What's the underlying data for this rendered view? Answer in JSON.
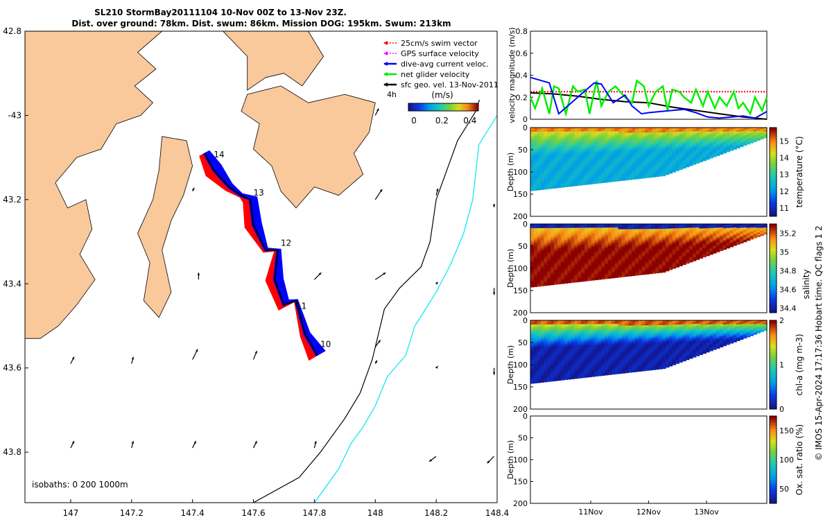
{
  "header": {
    "title_line1": "SL210 StormBay20111104 10-Nov 00Z to 13-Nov 23Z.",
    "title_line2": "Dist. over ground: 78km. Dist. swum: 86km. Mission DOG: 195km. Swum: 213km"
  },
  "colors": {
    "land": "#f9c89b",
    "red": "#ff0000",
    "blue": "#0000ff",
    "green": "#00ee00",
    "magenta": "#ff00ff",
    "cyan": "#00e5ee"
  },
  "chart_data": [
    {
      "type": "map",
      "xlim": [
        146.85,
        148.4
      ],
      "ylim": [
        -43.92,
        -42.8
      ],
      "x_ticks": [
        147,
        147.2,
        147.4,
        147.6,
        147.8,
        148,
        148.2,
        148.4
      ],
      "x_tick_labels": [
        "147",
        "147.2",
        "147.4",
        "147.6",
        "147.8",
        "148",
        "148.2",
        "148.4"
      ],
      "y_ticks": [
        -42.8,
        -43,
        -43.2,
        -43.4,
        -43.6,
        -43.8
      ],
      "y_tick_labels": [
        "42.8",
        "-43",
        "43.2",
        "43.4",
        "43.6",
        "43.8"
      ],
      "legend": [
        {
          "label": "25cm/s swim vector",
          "color": "#ff0000",
          "style": "dotted-arrow"
        },
        {
          "label": "GPS surface velocity",
          "color": "#ff00ff",
          "style": "dotted-arrow"
        },
        {
          "label": "dive-avg current veloc.",
          "color": "#0000ff",
          "style": "arrow"
        },
        {
          "label": "net glider velocity",
          "color": "#00ee00",
          "style": "arrow"
        },
        {
          "label": "sfc geo. vel. 13-Nov-2011",
          "color": "#000000",
          "style": "arrow"
        }
      ],
      "legend_extra": "4h",
      "colorbar": {
        "label": "(m/s)",
        "ticks": [
          "0",
          "0.2",
          "0.4"
        ],
        "range": [
          0,
          0.5
        ]
      },
      "isobaths_label": "isobaths: 0   200  1000m",
      "track": [
        [
          147.44,
          -43.09
        ],
        [
          147.47,
          -43.13
        ],
        [
          147.52,
          -43.17
        ],
        [
          147.56,
          -43.19
        ],
        [
          147.59,
          -43.2
        ],
        [
          147.6,
          -43.26
        ],
        [
          147.64,
          -43.32
        ],
        [
          147.68,
          -43.32
        ],
        [
          147.67,
          -43.39
        ],
        [
          147.7,
          -43.45
        ],
        [
          147.74,
          -43.44
        ],
        [
          147.77,
          -43.52
        ],
        [
          147.81,
          -43.57
        ]
      ],
      "day_labels": [
        {
          "text": "14",
          "lon": 147.47,
          "lat": -43.1
        },
        {
          "text": "13",
          "lon": 147.6,
          "lat": -43.19
        },
        {
          "text": "12",
          "lon": 147.69,
          "lat": -43.31
        },
        {
          "text": "11",
          "lon": 147.74,
          "lat": -43.46
        },
        {
          "text": "10",
          "lon": 147.82,
          "lat": -43.55
        }
      ],
      "isobath_200m": [
        [
          148.39,
          -42.82
        ],
        [
          148.37,
          -42.9
        ],
        [
          148.33,
          -42.99
        ],
        [
          148.27,
          -43.06
        ],
        [
          148.24,
          -43.12
        ],
        [
          148.2,
          -43.2
        ],
        [
          148.18,
          -43.3
        ],
        [
          148.15,
          -43.36
        ],
        [
          148.08,
          -43.41
        ],
        [
          148.03,
          -43.46
        ],
        [
          148.01,
          -43.52
        ],
        [
          147.99,
          -43.58
        ],
        [
          147.95,
          -43.66
        ],
        [
          147.9,
          -43.72
        ],
        [
          147.82,
          -43.8
        ],
        [
          147.75,
          -43.86
        ],
        [
          147.6,
          -43.92
        ]
      ],
      "isobath_1000m": [
        [
          148.4,
          -43.0
        ],
        [
          148.34,
          -43.07
        ],
        [
          148.32,
          -43.2
        ],
        [
          148.29,
          -43.28
        ],
        [
          148.25,
          -43.35
        ],
        [
          148.2,
          -43.42
        ],
        [
          148.13,
          -43.5
        ],
        [
          148.1,
          -43.57
        ],
        [
          148.04,
          -43.62
        ],
        [
          148.0,
          -43.69
        ],
        [
          147.96,
          -43.74
        ],
        [
          147.92,
          -43.78
        ],
        [
          147.88,
          -43.84
        ],
        [
          147.8,
          -43.92
        ]
      ],
      "land_polygons": [
        [
          [
            146.85,
            -42.8
          ],
          [
            147.3,
            -42.8
          ],
          [
            147.22,
            -42.85
          ],
          [
            147.28,
            -42.89
          ],
          [
            147.21,
            -42.93
          ],
          [
            147.27,
            -42.97
          ],
          [
            147.23,
            -43.0
          ],
          [
            147.15,
            -43.02
          ],
          [
            147.1,
            -43.08
          ],
          [
            147.02,
            -43.1
          ],
          [
            146.95,
            -43.16
          ],
          [
            146.99,
            -43.22
          ],
          [
            147.05,
            -43.2
          ],
          [
            147.07,
            -43.27
          ],
          [
            147.03,
            -43.33
          ],
          [
            147.08,
            -43.39
          ],
          [
            147.02,
            -43.45
          ],
          [
            146.96,
            -43.5
          ],
          [
            146.9,
            -43.53
          ],
          [
            146.85,
            -43.53
          ]
        ],
        [
          [
            147.5,
            -42.8
          ],
          [
            147.78,
            -42.8
          ],
          [
            147.83,
            -42.86
          ],
          [
            147.76,
            -42.93
          ],
          [
            147.7,
            -42.9
          ],
          [
            147.64,
            -42.91
          ],
          [
            147.58,
            -42.94
          ],
          [
            147.58,
            -42.86
          ]
        ],
        [
          [
            147.58,
            -42.95
          ],
          [
            147.69,
            -42.93
          ],
          [
            147.78,
            -42.97
          ],
          [
            147.9,
            -42.95
          ],
          [
            148.0,
            -42.97
          ],
          [
            147.98,
            -43.04
          ],
          [
            147.93,
            -43.09
          ],
          [
            147.96,
            -43.14
          ],
          [
            147.88,
            -43.19
          ],
          [
            147.8,
            -43.17
          ],
          [
            147.74,
            -43.22
          ],
          [
            147.69,
            -43.18
          ],
          [
            147.66,
            -43.12
          ],
          [
            147.6,
            -43.08
          ],
          [
            147.62,
            -43.02
          ],
          [
            147.56,
            -42.99
          ]
        ],
        [
          [
            147.3,
            -43.05
          ],
          [
            147.38,
            -43.06
          ],
          [
            147.4,
            -43.12
          ],
          [
            147.37,
            -43.19
          ],
          [
            147.33,
            -43.25
          ],
          [
            147.3,
            -43.32
          ],
          [
            147.33,
            -43.42
          ],
          [
            147.29,
            -43.48
          ],
          [
            147.24,
            -43.44
          ],
          [
            147.26,
            -43.35
          ],
          [
            147.22,
            -43.28
          ],
          [
            147.27,
            -43.2
          ],
          [
            147.29,
            -43.13
          ]
        ]
      ],
      "arrows": [
        {
          "lon": 147.0,
          "lat": -43.59,
          "u": 0.01,
          "v": 0.02
        },
        {
          "lon": 147.2,
          "lat": -43.59,
          "u": 0.005,
          "v": 0.02
        },
        {
          "lon": 147.4,
          "lat": -43.58,
          "u": 0.015,
          "v": 0.03
        },
        {
          "lon": 147.6,
          "lat": -43.58,
          "u": 0.01,
          "v": 0.025
        },
        {
          "lon": 148.0,
          "lat": -43.59,
          "u": 0.005,
          "v": 0.01
        },
        {
          "lon": 148.2,
          "lat": -43.6,
          "u": 0.005,
          "v": 0.005
        },
        {
          "lon": 148.39,
          "lat": -43.6,
          "u": 0.0,
          "v": -0.02
        },
        {
          "lon": 147.0,
          "lat": -43.79,
          "u": 0.01,
          "v": 0.02
        },
        {
          "lon": 147.2,
          "lat": -43.79,
          "u": 0.005,
          "v": 0.02
        },
        {
          "lon": 147.4,
          "lat": -43.79,
          "u": 0.01,
          "v": 0.02
        },
        {
          "lon": 147.6,
          "lat": -43.79,
          "u": 0.01,
          "v": 0.02
        },
        {
          "lon": 147.8,
          "lat": -43.79,
          "u": 0.005,
          "v": 0.02
        },
        {
          "lon": 148.2,
          "lat": -43.81,
          "u": -0.02,
          "v": -0.015
        },
        {
          "lon": 148.39,
          "lat": -43.81,
          "u": -0.02,
          "v": -0.02
        },
        {
          "lon": 148.0,
          "lat": -43.39,
          "u": 0.03,
          "v": 0.02
        },
        {
          "lon": 147.8,
          "lat": -43.39,
          "u": 0.02,
          "v": 0.02
        },
        {
          "lon": 148.2,
          "lat": -43.4,
          "u": 0.005,
          "v": 0.005
        },
        {
          "lon": 148.39,
          "lat": -43.41,
          "u": 0.0,
          "v": -0.02
        },
        {
          "lon": 148.0,
          "lat": -43.2,
          "u": 0.02,
          "v": 0.03
        },
        {
          "lon": 148.2,
          "lat": -43.19,
          "u": 0.005,
          "v": 0.02
        },
        {
          "lon": 148.39,
          "lat": -43.21,
          "u": 0.0,
          "v": -0.01
        },
        {
          "lon": 148.0,
          "lat": -43.0,
          "u": 0.01,
          "v": 0.02
        },
        {
          "lon": 147.42,
          "lat": -43.39,
          "u": 0.0,
          "v": 0.02
        },
        {
          "lon": 147.4,
          "lat": -43.18,
          "u": 0.005,
          "v": 0.01
        },
        {
          "lon": 148.0,
          "lat": -43.55,
          "u": 0.015,
          "v": 0.02
        }
      ]
    },
    {
      "type": "line",
      "ylabel": "velocity magnitude (m/s)",
      "xlim": [
        0,
        1
      ],
      "ylim": [
        0,
        0.8
      ],
      "y_ticks": [
        "0",
        "0.2",
        "0.4",
        "0.6",
        "0.8"
      ],
      "series": [
        {
          "color": "#ff0000",
          "style": "dotted",
          "x": [
            0,
            1
          ],
          "y": [
            0.25,
            0.25
          ]
        },
        {
          "color": "#000000",
          "x": [
            0,
            0.1,
            0.2,
            0.3,
            0.4,
            0.5,
            0.6,
            0.7,
            0.8,
            0.9,
            1.0
          ],
          "y": [
            0.24,
            0.23,
            0.21,
            0.18,
            0.16,
            0.15,
            0.11,
            0.08,
            0.05,
            0.02,
            0.0
          ]
        },
        {
          "color": "#00ee00",
          "x": [
            0,
            0.02,
            0.05,
            0.08,
            0.1,
            0.12,
            0.15,
            0.18,
            0.2,
            0.23,
            0.25,
            0.28,
            0.3,
            0.33,
            0.36,
            0.38,
            0.4,
            0.43,
            0.45,
            0.48,
            0.5,
            0.53,
            0.56,
            0.58,
            0.6,
            0.63,
            0.65,
            0.68,
            0.7,
            0.73,
            0.75,
            0.78,
            0.8,
            0.83,
            0.86,
            0.88,
            0.9,
            0.93,
            0.95,
            0.98,
            1.0
          ],
          "y": [
            0.2,
            0.1,
            0.28,
            0.05,
            0.3,
            0.28,
            0.05,
            0.3,
            0.25,
            0.27,
            0.05,
            0.35,
            0.12,
            0.25,
            0.3,
            0.25,
            0.2,
            0.15,
            0.35,
            0.3,
            0.12,
            0.25,
            0.3,
            0.08,
            0.27,
            0.25,
            0.2,
            0.15,
            0.27,
            0.12,
            0.25,
            0.1,
            0.2,
            0.12,
            0.25,
            0.1,
            0.15,
            0.05,
            0.2,
            0.08,
            0.2
          ]
        },
        {
          "color": "#0000ff",
          "x": [
            0,
            0.08,
            0.12,
            0.2,
            0.27,
            0.3,
            0.35,
            0.4,
            0.43,
            0.47,
            0.5,
            0.55,
            0.6,
            0.65,
            0.7,
            0.75,
            0.8,
            0.85,
            0.9,
            0.95,
            1.0
          ],
          "y": [
            0.38,
            0.33,
            0.05,
            0.2,
            0.33,
            0.32,
            0.15,
            0.22,
            0.12,
            0.05,
            0.06,
            0.07,
            0.08,
            0.09,
            0.06,
            0.02,
            0.01,
            0.02,
            0.03,
            0.01,
            0.07
          ]
        }
      ]
    },
    {
      "type": "heatmap",
      "ylabel": "Depth (m)",
      "colorbar_label": "temperature (°C)",
      "cticks": [
        "11",
        "12",
        "13",
        "14",
        "15"
      ],
      "clim": [
        10.5,
        15.8
      ],
      "ylim": [
        0,
        200
      ],
      "y_ticks": [
        "0",
        "50",
        "100",
        "150",
        "200"
      ],
      "shallow_value": 14.6,
      "deep_value": 12.3,
      "surface_value": 15.0
    },
    {
      "type": "heatmap",
      "ylabel": "Depth (m)",
      "colorbar_label": "salinity",
      "cticks": [
        "34.4",
        "34.6",
        "34.8",
        "35",
        "35.2"
      ],
      "clim": [
        34.35,
        35.3
      ],
      "ylim": [
        0,
        200
      ],
      "y_ticks": [
        "0",
        "50",
        "100",
        "150",
        "200"
      ],
      "shallow_value": 35.05,
      "deep_value": 35.3,
      "surface_value": 34.4
    },
    {
      "type": "heatmap",
      "ylabel": "Depth (m)",
      "colorbar_label": "chl-a (mg m-3)",
      "cticks": [
        "0",
        "1",
        "2"
      ],
      "clim": [
        0,
        2
      ],
      "ylim": [
        0,
        200
      ],
      "y_ticks": [
        "0",
        "50",
        "100",
        "150",
        "200"
      ],
      "shallow_value": 1.6,
      "deep_value": 0.1,
      "surface_value": 1.8
    },
    {
      "type": "heatmap",
      "ylabel": "Depth (m)",
      "colorbar_label": "Ox. sat. ratio (%)",
      "cticks": [
        "50",
        "100",
        "150"
      ],
      "clim": [
        25,
        175
      ],
      "ylim": [
        0,
        200
      ],
      "y_ticks": [
        "0",
        "50",
        "100",
        "150",
        "200"
      ],
      "x_ticks": [
        "11Nov",
        "12Nov",
        "13Nov"
      ]
    }
  ],
  "footer_note": "© IMOS 15-Apr-2024 17:17:36 Hobart time. QC flags 1  2",
  "side_label": "salinity"
}
